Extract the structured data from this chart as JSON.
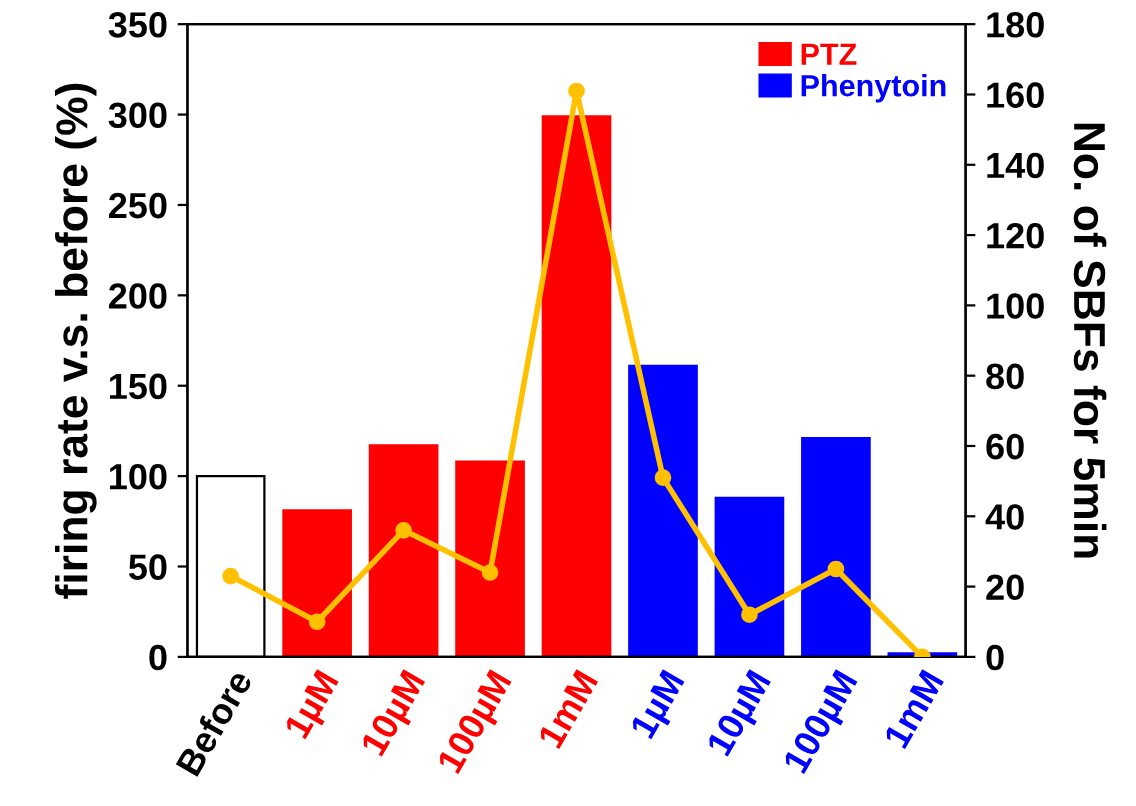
{
  "chart_data": {
    "type": "bar",
    "ylabel": "firing rate v.s. before (%)",
    "y2label": "No. of SBFs for 5min",
    "categories": [
      "Before",
      "1µM",
      "10µM",
      "100µM",
      "1mM",
      "1µM",
      "10µM",
      "100µM",
      "1mM"
    ],
    "series": [
      {
        "color": "#ffffff",
        "values": [
          100,
          null,
          null,
          null,
          null,
          null,
          null,
          null,
          null
        ]
      },
      {
        "name": "PTZ",
        "color": "#ff0000",
        "values": [
          null,
          81,
          117,
          108,
          299,
          null,
          null,
          null,
          null
        ]
      },
      {
        "name": "Phenytoin",
        "color": "#0000ff",
        "values": [
          null,
          null,
          null,
          null,
          null,
          161,
          88,
          121,
          2
        ]
      },
      {
        "type": "line",
        "axis": "y2",
        "color": "#ffc000",
        "marker": "circle",
        "values": [
          23,
          10,
          36,
          24,
          161,
          51,
          12,
          25,
          0
        ]
      }
    ],
    "ylim": [
      0,
      350
    ],
    "yticks": [
      0,
      50,
      100,
      150,
      200,
      250,
      300,
      350
    ],
    "y2lim": [
      0,
      180
    ],
    "y2ticks": [
      0,
      20,
      40,
      60,
      80,
      100,
      120,
      140,
      160,
      180
    ],
    "grid": false,
    "legend": "top right"
  }
}
